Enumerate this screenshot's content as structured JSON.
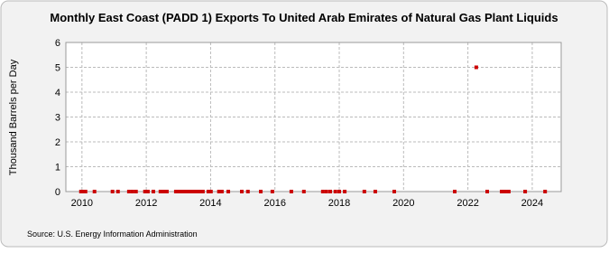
{
  "chart_data": {
    "type": "scatter",
    "title": "Monthly East Coast (PADD 1) Exports To United Arab Emirates of Natural Gas Plant Liquids",
    "y_label": "Thousand Barrels per Day",
    "source": "Source: U.S. Energy Information Administration",
    "series": [
      {
        "name": "Exports",
        "color": "#cc0000",
        "x": [
          2009.97,
          2010.03,
          2010.11,
          2010.39,
          2010.95,
          2011.12,
          2011.46,
          2011.57,
          2011.68,
          2011.96,
          2012.05,
          2012.22,
          2012.44,
          2012.53,
          2012.64,
          2012.92,
          2013.0,
          2013.09,
          2013.17,
          2013.25,
          2013.34,
          2013.42,
          2013.51,
          2013.59,
          2013.68,
          2013.76,
          2013.93,
          2014.01,
          2014.26,
          2014.35,
          2014.55,
          2014.97,
          2015.16,
          2015.56,
          2015.92,
          2016.51,
          2016.9,
          2017.49,
          2017.6,
          2017.72,
          2017.88,
          2018.0,
          2018.17,
          2018.78,
          2019.12,
          2019.71,
          2021.59,
          2022.26,
          2022.6,
          2023.05,
          2023.16,
          2023.27,
          2023.78,
          2024.4
        ],
        "values": [
          0,
          0,
          0,
          0,
          0,
          0,
          0,
          0,
          0,
          0,
          0,
          0,
          0,
          0,
          0,
          0,
          0,
          0,
          0,
          0,
          0,
          0,
          0,
          0,
          0,
          0,
          0,
          0,
          0,
          0,
          0,
          0,
          0,
          0,
          0,
          0,
          0,
          0,
          0,
          0,
          0,
          0,
          0,
          0,
          0,
          0,
          0,
          5,
          0,
          0,
          0,
          0,
          0,
          0
        ]
      }
    ],
    "xlim": [
      2009.5,
      2024.9
    ],
    "xticks": [
      2010,
      2012,
      2014,
      2016,
      2018,
      2020,
      2022,
      2024
    ],
    "ylim": [
      0,
      6
    ],
    "yticks": [
      0,
      1,
      2,
      3,
      4,
      5,
      6
    ],
    "grid": true
  }
}
